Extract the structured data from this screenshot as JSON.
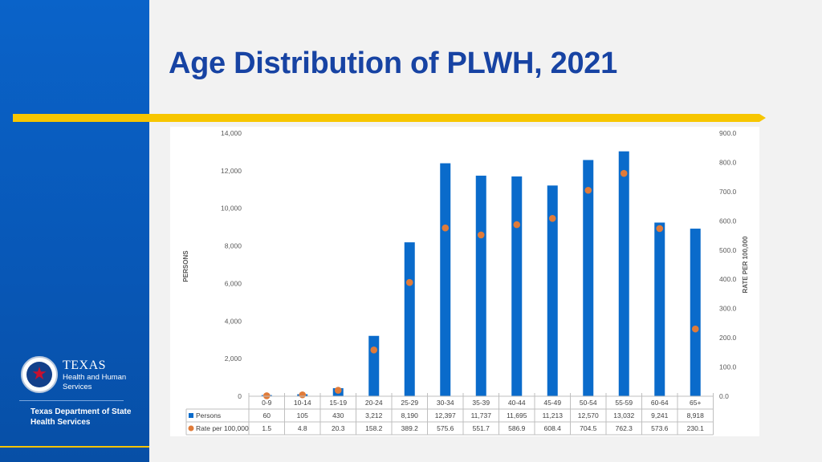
{
  "slide": {
    "title": "Age Distribution of PLWH, 2021",
    "logo": {
      "name": "TEXAS",
      "subtitle_line1": "Health and Human",
      "subtitle_line2": "Services",
      "dept_line1": "Texas Department of State",
      "dept_line2": "Health Services"
    }
  },
  "colors": {
    "sidebar": "#0a63c9",
    "title": "#1743a3",
    "accent_bar": "#f7c600",
    "bars": "#0a6bcb",
    "dots": "#e07b39"
  },
  "chart_data": {
    "type": "bar",
    "title": "",
    "categories": [
      "0-9",
      "10-14",
      "15-19",
      "20-24",
      "25-29",
      "30-34",
      "35-39",
      "40-44",
      "45-49",
      "50-54",
      "55-59",
      "60-64",
      "65+"
    ],
    "series": [
      {
        "name": "Persons",
        "axis": "left",
        "kind": "bar",
        "values": [
          60,
          105,
          430,
          3212,
          8190,
          12397,
          11737,
          11695,
          11213,
          12570,
          13032,
          9241,
          8918
        ],
        "labels": [
          "60",
          "105",
          "430",
          "3,212",
          "8,190",
          "12,397",
          "11,737",
          "11,695",
          "11,213",
          "12,570",
          "13,032",
          "9,241",
          "8,918"
        ]
      },
      {
        "name": "Rate per 100,000",
        "axis": "right",
        "kind": "scatter",
        "values": [
          1.5,
          4.8,
          20.3,
          158.2,
          389.2,
          575.6,
          551.7,
          586.9,
          608.4,
          704.5,
          762.3,
          573.6,
          230.1
        ],
        "labels": [
          "1.5",
          "4.8",
          "20.3",
          "158.2",
          "389.2",
          "575.6",
          "551.7",
          "586.9",
          "608.4",
          "704.5",
          "762.3",
          "573.6",
          "230.1"
        ]
      }
    ],
    "ylabel": "PERSONS",
    "ylabel_right": "RATE PER 100,000",
    "ylim": [
      0,
      14000
    ],
    "ylim_right": [
      0,
      900
    ],
    "yticks": [
      "0",
      "2,000",
      "4,000",
      "6,000",
      "8,000",
      "10,000",
      "12,000",
      "14,000"
    ],
    "yticks_right": [
      "0.0",
      "100.0",
      "200.0",
      "300.0",
      "400.0",
      "500.0",
      "600.0",
      "700.0",
      "800.0",
      "900.0"
    ],
    "grid": false,
    "legend": "data-table"
  }
}
